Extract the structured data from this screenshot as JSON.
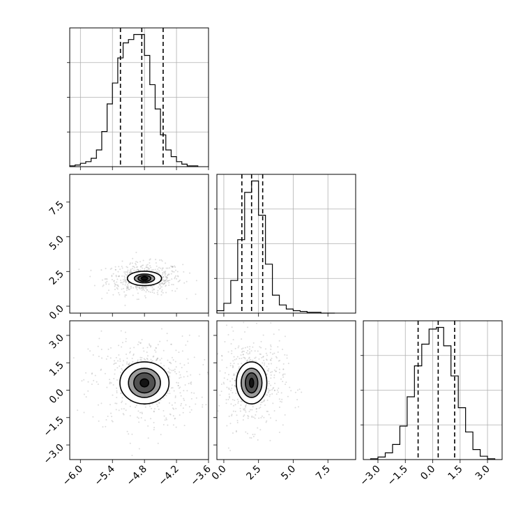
{
  "chart_data": {
    "type": "corner",
    "parameters": [
      {
        "id": "p0",
        "range": [
          -6.2,
          -3.6
        ],
        "ticks": [
          -6.0,
          -5.4,
          -4.8,
          -4.2,
          -3.6
        ],
        "tick_labels": [
          "−6.0",
          "−5.4",
          "−4.8",
          "−4.2",
          "−3.6"
        ]
      },
      {
        "id": "p1",
        "range": [
          -0.5,
          9.5
        ],
        "ticks": [
          0.0,
          2.5,
          5.0,
          7.5
        ],
        "tick_labels": [
          "0.0",
          "2.5",
          "5.0",
          "7.5"
        ]
      },
      {
        "id": "p2",
        "range": [
          -3.8,
          3.8
        ],
        "ticks": [
          -3.0,
          -1.5,
          0.0,
          1.5,
          3.0
        ],
        "tick_labels": [
          "−3.0",
          "−1.5",
          "0.0",
          "1.5",
          "3.0"
        ]
      }
    ],
    "diagonal": [
      {
        "param": "p0",
        "edges": [
          -6.2,
          -6.1,
          -6.0,
          -5.9,
          -5.8,
          -5.7,
          -5.6,
          -5.5,
          -5.4,
          -5.3,
          -5.2,
          -5.1,
          -5.0,
          -4.9,
          -4.8,
          -4.7,
          -4.6,
          -4.5,
          -4.4,
          -4.3,
          -4.2,
          -4.1,
          -4.0,
          -3.9,
          -3.8
        ],
        "counts": [
          1,
          2,
          4,
          6,
          10,
          20,
          42,
          75,
          100,
          130,
          148,
          152,
          158,
          158,
          133,
          98,
          69,
          38,
          20,
          12,
          6,
          3,
          1,
          1
        ],
        "quantiles": [
          -5.25,
          -4.85,
          -4.45
        ]
      },
      {
        "param": "p1",
        "edges": [
          -0.5,
          0.0,
          0.5,
          1.0,
          1.5,
          2.0,
          2.5,
          3.0,
          3.5,
          4.0,
          4.5,
          5.0,
          5.5,
          6.0,
          6.5,
          7.0,
          7.5,
          8.0
        ],
        "counts": [
          3,
          12,
          40,
          90,
          148,
          162,
          120,
          60,
          22,
          10,
          5,
          3,
          2,
          1,
          1,
          0,
          0
        ],
        "quantiles": [
          1.3,
          2.0,
          2.8
        ]
      },
      {
        "param": "p2",
        "edges": [
          -3.4,
          -3.0,
          -2.6,
          -2.2,
          -1.8,
          -1.4,
          -1.0,
          -0.6,
          -0.2,
          0.2,
          0.6,
          1.0,
          1.4,
          1.8,
          2.2,
          2.6,
          3.0,
          3.4
        ],
        "counts": [
          1,
          3,
          8,
          18,
          40,
          75,
          112,
          138,
          156,
          158,
          136,
          100,
          62,
          33,
          12,
          4,
          1
        ],
        "quantiles": [
          -0.8,
          0.3,
          1.2
        ]
      }
    ],
    "panels_2d": [
      {
        "x": "p0",
        "y": "p1",
        "center": [
          -4.8,
          2.0
        ],
        "levels_sigma": [
          [
            0.06,
            0.13
          ],
          [
            0.12,
            0.22
          ],
          [
            0.19,
            0.32
          ],
          [
            0.32,
            0.52
          ]
        ]
      },
      {
        "x": "p0",
        "y": "p2",
        "center": [
          -4.8,
          0.4
        ],
        "levels_sigma": [
          [
            0.08,
            0.22
          ],
          [
            0.2,
            0.55
          ],
          [
            0.3,
            0.8
          ],
          [
            0.46,
            1.15
          ]
        ]
      },
      {
        "x": "p1",
        "y": "p2",
        "center": [
          2.0,
          0.4
        ],
        "levels_sigma": [
          [
            0.15,
            0.25
          ],
          [
            0.45,
            0.55
          ],
          [
            0.75,
            0.8
          ],
          [
            1.1,
            1.15
          ]
        ]
      }
    ],
    "grid": true
  }
}
